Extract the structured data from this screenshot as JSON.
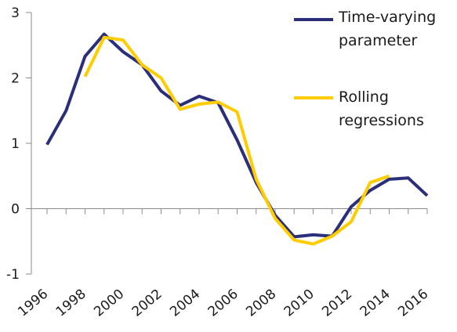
{
  "chart_data": {
    "type": "line",
    "title": "",
    "xlabel": "",
    "ylabel": "",
    "x": [
      1996,
      1997,
      1998,
      1999,
      2000,
      2001,
      2002,
      2003,
      2004,
      2005,
      2006,
      2007,
      2008,
      2009,
      2010,
      2011,
      2012,
      2013,
      2014,
      2015,
      2016
    ],
    "xticks": [
      "1996",
      "1998",
      "2000",
      "2002",
      "2004",
      "2006",
      "2008",
      "2010",
      "2012",
      "2014",
      "2016"
    ],
    "yticks": [
      "3",
      "2",
      "1",
      "0",
      "-1"
    ],
    "ylim": [
      -1,
      3
    ],
    "xlim": [
      1996,
      2016
    ],
    "grid": false,
    "legend_position": "top-right",
    "series": [
      {
        "name": "Time-varying parameter",
        "name_lines": [
          "Time-varying",
          "parameter"
        ],
        "color": "#2b2f7a",
        "x": [
          1996,
          1997,
          1998,
          1999,
          2000,
          2001,
          2002,
          2003,
          2004,
          2005,
          2006,
          2007,
          2008,
          2009,
          2010,
          2011,
          2012,
          2013,
          2014,
          2015,
          2016
        ],
        "values": [
          0.98,
          1.5,
          2.33,
          2.67,
          2.4,
          2.2,
          1.8,
          1.58,
          1.72,
          1.62,
          1.05,
          0.4,
          -0.1,
          -0.43,
          -0.4,
          -0.42,
          0.03,
          0.28,
          0.45,
          0.47,
          0.2
        ]
      },
      {
        "name": "Rolling regressions",
        "name_lines": [
          "Rolling",
          "regressions"
        ],
        "color": "#ffcc00",
        "x": [
          1998,
          1999,
          2000,
          2001,
          2002,
          2003,
          2004,
          2005,
          2006,
          2007,
          2008,
          2009,
          2010,
          2011,
          2012,
          2013,
          2014
        ],
        "values": [
          2.02,
          2.62,
          2.58,
          2.2,
          2.0,
          1.52,
          1.6,
          1.63,
          1.48,
          0.45,
          -0.15,
          -0.48,
          -0.54,
          -0.42,
          -0.2,
          0.4,
          0.5
        ]
      }
    ]
  }
}
